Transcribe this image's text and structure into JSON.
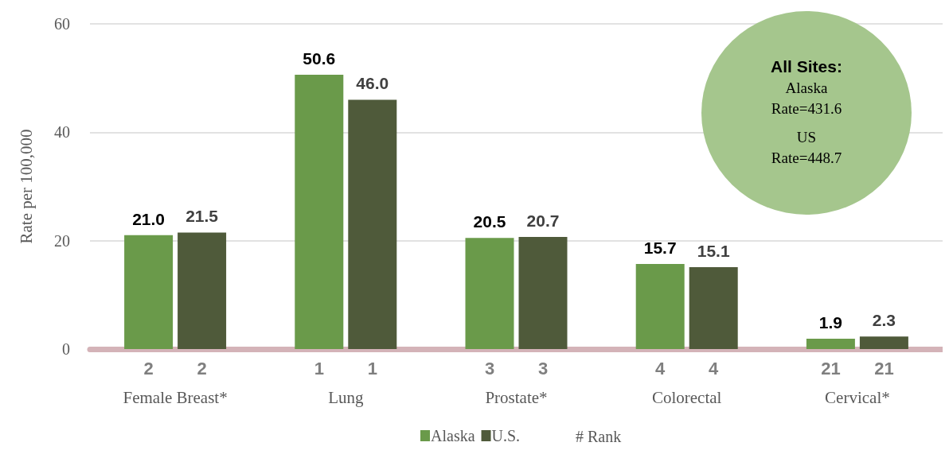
{
  "chart_data": {
    "type": "bar",
    "ylabel": "Rate per 100,000",
    "categories": [
      "Female Breast*",
      "Lung",
      "Prostate*",
      "Colorectal",
      "Cervical*"
    ],
    "series": [
      {
        "name": "Alaska",
        "color": "#6a9a4a",
        "values": [
          21.0,
          50.6,
          20.5,
          15.7,
          1.9
        ],
        "value_labels": [
          "21.0",
          "50.6",
          "20.5",
          "15.7",
          "1.9"
        ]
      },
      {
        "name": "U.S.",
        "color": "#4f5a3a",
        "values": [
          21.5,
          46.0,
          20.7,
          15.1,
          2.3
        ],
        "value_labels": [
          "21.5",
          "46.0",
          "20.7",
          "15.1",
          "2.3"
        ]
      }
    ],
    "ylim": [
      0,
      60
    ],
    "yticks": [
      0,
      20,
      40,
      60
    ],
    "grid": "y",
    "legend": "bottom",
    "annotations": [
      "All Sites:",
      "Alaska\nRate=431.6",
      "US\nRate=448.7",
      "# Rank",
      {
        "text": "2",
        "x": "Female Breast*",
        "y": 0
      },
      {
        "text": "2",
        "x": "Female Breast*",
        "y": 0
      },
      {
        "text": "1",
        "x": "Lung",
        "y": 0
      },
      {
        "text": "1",
        "x": "Lung",
        "y": 0
      },
      {
        "text": "3",
        "x": "Prostate*",
        "y": 0
      },
      {
        "text": "3",
        "x": "Prostate*",
        "y": 0
      },
      {
        "text": "4",
        "x": "Colorectal",
        "y": 0
      },
      {
        "text": "4",
        "x": "Colorectal",
        "y": 0
      },
      {
        "text": "21",
        "x": "Cervical*",
        "y": 0
      },
      {
        "text": "21",
        "x": "Cervical*",
        "y": 0
      }
    ]
  }
}
